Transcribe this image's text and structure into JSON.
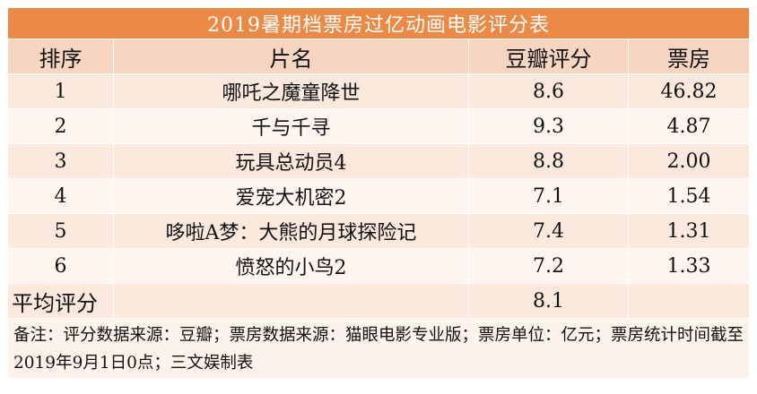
{
  "table": {
    "title": "2019暑期档票房过亿动画电影评分表",
    "headers": [
      "排序",
      "片名",
      "豆瓣评分",
      "票房"
    ],
    "rows": [
      {
        "rank": "1",
        "name": "哪吒之魔童降世",
        "score": "8.6",
        "box": "46.82"
      },
      {
        "rank": "2",
        "name": "千与千寻",
        "score": "9.3",
        "box": "4.87"
      },
      {
        "rank": "3",
        "name": "玩具总动员4",
        "score": "8.8",
        "box": "2.00"
      },
      {
        "rank": "4",
        "name": "爱宠大机密2",
        "score": "7.1",
        "box": "1.54"
      },
      {
        "rank": "5",
        "name": "哆啦A梦：大熊的月球探险记",
        "score": "7.4",
        "box": "1.31"
      },
      {
        "rank": "6",
        "name": "愤怒的小鸟2",
        "score": "7.2",
        "box": "1.33"
      }
    ],
    "average_label": "平均评分",
    "average_score": "8.1",
    "note": "备注：评分数据来源：豆瓣；票房数据来源：猫眼电影专业版；票房单位：亿元；票房统计时间截至2019年9月1日0点；三文娱制表"
  },
  "colors": {
    "title_bg": "#ec8a45",
    "header_bg": "#f7d6c1",
    "row_odd": "#fbe9dd",
    "row_even": "#fef5ef"
  }
}
